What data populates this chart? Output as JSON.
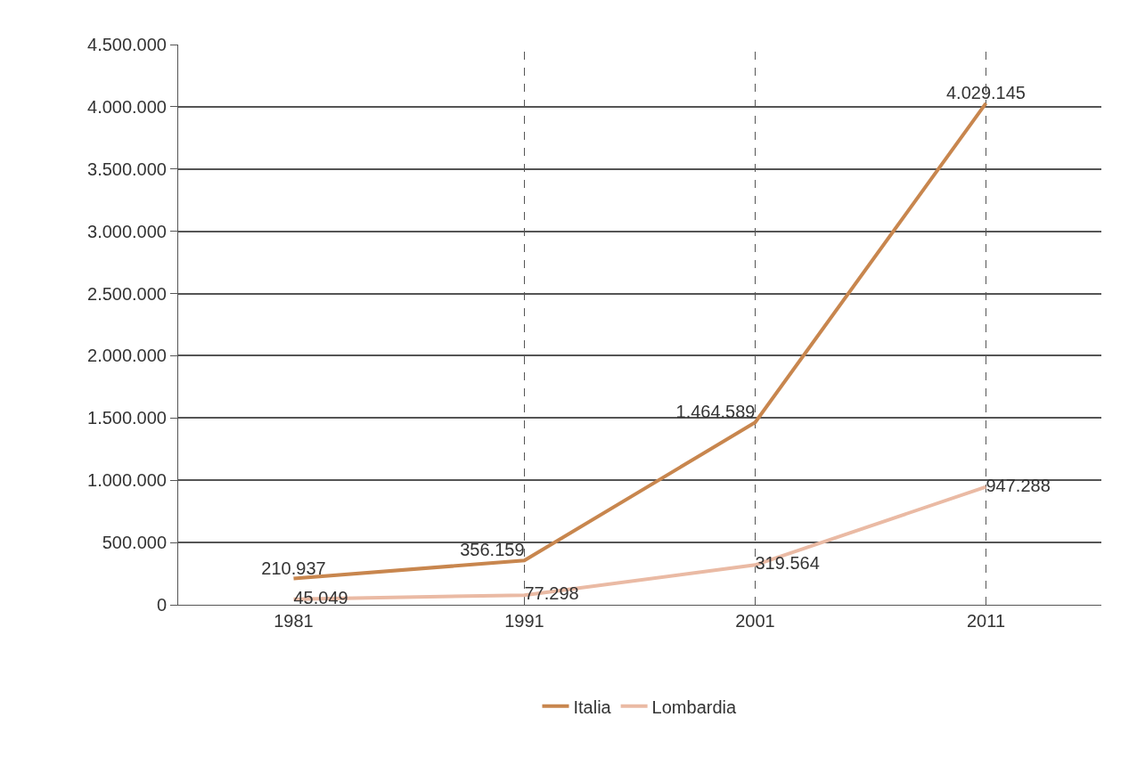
{
  "chart_data": {
    "type": "line",
    "categories": [
      "1981",
      "1991",
      "2001",
      "2011"
    ],
    "series": [
      {
        "name": "Italia",
        "color": "#c8864e",
        "values": [
          210937,
          356159,
          1464589,
          4029145
        ],
        "value_labels": [
          "210.937",
          "356.159",
          "1.464.589",
          "4.029.145"
        ]
      },
      {
        "name": "Lombardia",
        "color": "#eabaa4",
        "values": [
          45049,
          77298,
          319564,
          947288
        ],
        "value_labels": [
          "45.049",
          "77.298",
          "319.564",
          "947.288"
        ]
      }
    ],
    "ylim": [
      0,
      4500000
    ],
    "yticks": [
      {
        "value": 0,
        "label": "0"
      },
      {
        "value": 500000,
        "label": "500.000"
      },
      {
        "value": 1000000,
        "label": "1.000.000"
      },
      {
        "value": 1500000,
        "label": "1.500.000"
      },
      {
        "value": 2000000,
        "label": "2.000.000"
      },
      {
        "value": 2500000,
        "label": "2.500.000"
      },
      {
        "value": 3000000,
        "label": "3.000.000"
      },
      {
        "value": 3500000,
        "label": "3.500.000"
      },
      {
        "value": 4000000,
        "label": "4.000.000"
      },
      {
        "value": 4500000,
        "label": "4.500.000"
      }
    ],
    "ref_lines": [
      {
        "axis": "x",
        "value": "1991",
        "line_style": "dashed",
        "color": "#555555"
      },
      {
        "axis": "x",
        "value": "2001",
        "line_style": "dashed",
        "color": "#555555"
      },
      {
        "axis": "x",
        "value": "2011",
        "line_style": "dashed",
        "color": "#555555"
      }
    ],
    "grid": "y",
    "legend": "bottom",
    "marker": "none",
    "line_style": "solid"
  }
}
